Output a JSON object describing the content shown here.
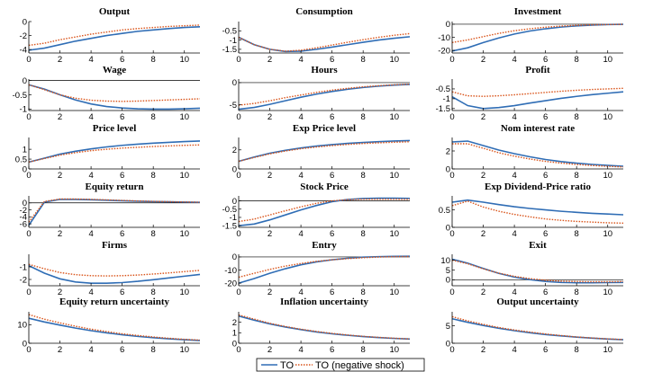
{
  "chart_data": {
    "type": "line",
    "legend": {
      "placement": "bottom-center",
      "entries": [
        "TO",
        "TO (negative shock)"
      ]
    },
    "colors": {
      "TO": "#2f6db5",
      "TO (negative shock)": "#d95319"
    },
    "x": [
      0,
      1,
      2,
      3,
      4,
      5,
      6,
      7,
      8,
      9,
      10,
      11
    ],
    "xlim": [
      0,
      11
    ],
    "xticks": [
      "0",
      "2",
      "4",
      "6",
      "8",
      "10"
    ],
    "panels": [
      {
        "title": "Output",
        "ylim": [
          -4.5,
          0
        ],
        "yticks": [
          {
            "v": 0,
            "t": "0"
          },
          {
            "v": -2,
            "t": "-2"
          },
          {
            "v": -4,
            "t": "-4"
          }
        ],
        "series": [
          {
            "name": "TO",
            "values": [
              -4.1,
              -3.8,
              -3.3,
              -2.8,
              -2.4,
              -2.0,
              -1.7,
              -1.4,
              -1.2,
              -1.0,
              -0.85,
              -0.75
            ]
          },
          {
            "name": "TO (negative shock)",
            "values": [
              -3.4,
              -3.1,
              -2.6,
              -2.2,
              -1.8,
              -1.5,
              -1.2,
              -1.0,
              -0.85,
              -0.7,
              -0.6,
              -0.5
            ]
          }
        ]
      },
      {
        "title": "Consumption",
        "ylim": [
          -1.7,
          0
        ],
        "yticks": [
          {
            "v": -0.5,
            "t": "-0.5"
          },
          {
            "v": -1,
            "t": "-1"
          },
          {
            "v": -1.5,
            "t": "-1.5"
          }
        ],
        "series": [
          {
            "name": "TO",
            "values": [
              -0.85,
              -1.25,
              -1.5,
              -1.62,
              -1.6,
              -1.5,
              -1.38,
              -1.25,
              -1.12,
              -1.0,
              -0.9,
              -0.82
            ]
          },
          {
            "name": "TO (negative shock)",
            "values": [
              -0.85,
              -1.25,
              -1.5,
              -1.6,
              -1.55,
              -1.42,
              -1.27,
              -1.12,
              -0.98,
              -0.85,
              -0.74,
              -0.65
            ]
          }
        ]
      },
      {
        "title": "Investment",
        "ylim": [
          -22,
          2
        ],
        "yticks": [
          {
            "v": 0,
            "t": "0"
          },
          {
            "v": -10,
            "t": "-10"
          },
          {
            "v": -20,
            "t": "-20"
          }
        ],
        "series": [
          {
            "name": "TO",
            "values": [
              -20.5,
              -18,
              -14,
              -10.5,
              -7.5,
              -5.2,
              -3.5,
              -2.2,
              -1.3,
              -0.7,
              -0.3,
              -0.1
            ]
          },
          {
            "name": "TO (negative shock)",
            "values": [
              -14,
              -12,
              -9.5,
              -7,
              -5,
              -3.5,
              -2.3,
              -1.5,
              -0.9,
              -0.5,
              -0.3,
              -0.1
            ]
          }
        ]
      },
      {
        "title": "Wage",
        "ylim": [
          -1.05,
          0.05
        ],
        "yticks": [
          {
            "v": 0,
            "t": "0"
          },
          {
            "v": -0.5,
            "t": "-0.5"
          },
          {
            "v": -1,
            "t": "-1"
          }
        ],
        "series": [
          {
            "name": "TO",
            "values": [
              -0.15,
              -0.3,
              -0.5,
              -0.68,
              -0.82,
              -0.91,
              -0.96,
              -0.99,
              -1.0,
              -1.0,
              -0.99,
              -0.97
            ]
          },
          {
            "name": "TO (negative shock)",
            "values": [
              -0.15,
              -0.32,
              -0.5,
              -0.62,
              -0.69,
              -0.72,
              -0.73,
              -0.72,
              -0.7,
              -0.68,
              -0.66,
              -0.64
            ]
          }
        ]
      },
      {
        "title": "Hours",
        "ylim": [
          -6.3,
          0.8
        ],
        "yticks": [
          {
            "v": 0,
            "t": "0"
          },
          {
            "v": -5,
            "t": "-5"
          }
        ],
        "series": [
          {
            "name": "TO",
            "values": [
              -6.0,
              -5.6,
              -4.9,
              -4.1,
              -3.3,
              -2.6,
              -2.0,
              -1.5,
              -1.1,
              -0.8,
              -0.55,
              -0.4
            ]
          },
          {
            "name": "TO (negative shock)",
            "values": [
              -5.1,
              -4.7,
              -4.1,
              -3.4,
              -2.8,
              -2.2,
              -1.7,
              -1.3,
              -0.95,
              -0.7,
              -0.5,
              -0.35
            ]
          }
        ]
      },
      {
        "title": "Profit",
        "ylim": [
          -1.6,
          0
        ],
        "yticks": [
          {
            "v": -0.5,
            "t": "-0.5"
          },
          {
            "v": -1,
            "t": "-1"
          },
          {
            "v": -1.5,
            "t": "-1.5"
          }
        ],
        "series": [
          {
            "name": "TO",
            "values": [
              -0.9,
              -1.35,
              -1.5,
              -1.45,
              -1.35,
              -1.22,
              -1.1,
              -0.98,
              -0.88,
              -0.79,
              -0.72,
              -0.65
            ]
          },
          {
            "name": "TO (negative shock)",
            "values": [
              -0.65,
              -0.85,
              -0.88,
              -0.85,
              -0.8,
              -0.74,
              -0.68,
              -0.62,
              -0.57,
              -0.53,
              -0.5,
              -0.47
            ]
          }
        ]
      },
      {
        "title": "Price level",
        "ylim": [
          0,
          1.6
        ],
        "yticks": [
          {
            "v": 1,
            "t": "1"
          },
          {
            "v": 0.5,
            "t": "0.5"
          },
          {
            "v": 0,
            "t": "0"
          }
        ],
        "series": [
          {
            "name": "TO",
            "values": [
              0.35,
              0.55,
              0.75,
              0.9,
              1.02,
              1.12,
              1.2,
              1.26,
              1.31,
              1.35,
              1.39,
              1.42
            ]
          },
          {
            "name": "TO (negative shock)",
            "values": [
              0.35,
              0.53,
              0.7,
              0.83,
              0.93,
              1.0,
              1.06,
              1.1,
              1.14,
              1.17,
              1.2,
              1.22
            ]
          }
        ]
      },
      {
        "title": "Exp Price level",
        "ylim": [
          0,
          3.3
        ],
        "yticks": [
          {
            "v": 2,
            "t": "2"
          },
          {
            "v": 0,
            "t": "0"
          }
        ],
        "series": [
          {
            "name": "TO",
            "values": [
              0.8,
              1.25,
              1.65,
              1.95,
              2.2,
              2.4,
              2.55,
              2.68,
              2.78,
              2.86,
              2.93,
              2.98
            ]
          },
          {
            "name": "TO (negative shock)",
            "values": [
              0.8,
              1.2,
              1.58,
              1.88,
              2.12,
              2.3,
              2.45,
              2.57,
              2.67,
              2.74,
              2.8,
              2.85
            ]
          }
        ]
      },
      {
        "title": "Nom interest rate",
        "ylim": [
          0,
          3.5
        ],
        "yticks": [
          {
            "v": 2,
            "t": "2"
          },
          {
            "v": 0,
            "t": "0"
          }
        ],
        "series": [
          {
            "name": "TO",
            "values": [
              3.0,
              3.1,
              2.6,
              2.1,
              1.7,
              1.35,
              1.05,
              0.82,
              0.64,
              0.5,
              0.39,
              0.3
            ]
          },
          {
            "name": "TO (negative shock)",
            "values": [
              2.8,
              2.8,
              2.3,
              1.8,
              1.42,
              1.1,
              0.84,
              0.65,
              0.5,
              0.38,
              0.29,
              0.22
            ]
          }
        ]
      },
      {
        "title": "Equity return",
        "ylim": [
          -7,
          2
        ],
        "yticks": [
          {
            "v": 0,
            "t": "0"
          },
          {
            "v": -2,
            "t": "-2"
          },
          {
            "v": -4,
            "t": "-4"
          },
          {
            "v": -6,
            "t": "-6"
          }
        ],
        "series": [
          {
            "name": "TO",
            "values": [
              -6.4,
              0.2,
              1.0,
              1.0,
              0.9,
              0.75,
              0.6,
              0.48,
              0.38,
              0.3,
              0.22,
              0.16
            ]
          },
          {
            "name": "TO (negative shock)",
            "values": [
              -5.5,
              0.4,
              1.1,
              1.1,
              1.0,
              0.85,
              0.7,
              0.55,
              0.43,
              0.33,
              0.25,
              0.18
            ]
          }
        ]
      },
      {
        "title": "Stock Price",
        "ylim": [
          -1.6,
          0.3
        ],
        "yticks": [
          {
            "v": 0,
            "t": "0"
          },
          {
            "v": -0.5,
            "t": "-0.5"
          },
          {
            "v": -1,
            "t": "-1"
          },
          {
            "v": -1.5,
            "t": "-1.5"
          }
        ],
        "series": [
          {
            "name": "TO",
            "values": [
              -1.5,
              -1.4,
              -1.15,
              -0.85,
              -0.55,
              -0.28,
              -0.05,
              0.08,
              0.14,
              0.16,
              0.16,
              0.15
            ]
          },
          {
            "name": "TO (negative shock)",
            "values": [
              -1.25,
              -1.1,
              -0.85,
              -0.6,
              -0.36,
              -0.15,
              0.0,
              0.07,
              0.1,
              0.1,
              0.1,
              0.09
            ]
          }
        ]
      },
      {
        "title": "Exp Dividend-Price ratio",
        "ylim": [
          0,
          0.9
        ],
        "yticks": [
          {
            "v": 0.5,
            "t": "0.5"
          },
          {
            "v": 0,
            "t": "0"
          }
        ],
        "series": [
          {
            "name": "TO",
            "values": [
              0.72,
              0.78,
              0.72,
              0.65,
              0.59,
              0.54,
              0.5,
              0.46,
              0.43,
              0.4,
              0.38,
              0.36
            ]
          },
          {
            "name": "TO (negative shock)",
            "values": [
              0.62,
              0.75,
              0.58,
              0.46,
              0.37,
              0.3,
              0.24,
              0.2,
              0.17,
              0.15,
              0.13,
              0.12
            ]
          }
        ]
      },
      {
        "title": "Firms",
        "ylim": [
          -2.5,
          0
        ],
        "yticks": [
          {
            "v": -1,
            "t": "-1"
          },
          {
            "v": -2,
            "t": "-2"
          }
        ],
        "series": [
          {
            "name": "TO",
            "values": [
              -0.9,
              -1.5,
              -1.95,
              -2.2,
              -2.3,
              -2.3,
              -2.25,
              -2.15,
              -2.02,
              -1.88,
              -1.74,
              -1.6
            ]
          },
          {
            "name": "TO (negative shock)",
            "values": [
              -0.8,
              -1.15,
              -1.45,
              -1.62,
              -1.7,
              -1.72,
              -1.7,
              -1.65,
              -1.57,
              -1.48,
              -1.38,
              -1.28
            ]
          }
        ]
      },
      {
        "title": "Entry",
        "ylim": [
          -22,
          2
        ],
        "yticks": [
          {
            "v": 0,
            "t": "0"
          },
          {
            "v": -10,
            "t": "-10"
          },
          {
            "v": -20,
            "t": "-20"
          }
        ],
        "series": [
          {
            "name": "TO",
            "values": [
              -20,
              -16.5,
              -12.5,
              -9,
              -6,
              -3.8,
              -2.2,
              -1.0,
              -0.2,
              0.2,
              0.4,
              0.5
            ]
          },
          {
            "name": "TO (negative shock)",
            "values": [
              -15.5,
              -12.5,
              -9.5,
              -7,
              -5,
              -3.4,
              -2.2,
              -1.3,
              -0.6,
              -0.1,
              0.2,
              0.3
            ]
          }
        ]
      },
      {
        "title": "Exit",
        "ylim": [
          -3,
          13
        ],
        "yticks": [
          {
            "v": 10,
            "t": "10"
          },
          {
            "v": 5,
            "t": "5"
          },
          {
            "v": 0,
            "t": "0"
          }
        ],
        "series": [
          {
            "name": "TO",
            "values": [
              10.5,
              8.5,
              5.8,
              3.3,
              1.4,
              0.1,
              -0.8,
              -1.3,
              -1.5,
              -1.5,
              -1.4,
              -1.3
            ]
          },
          {
            "name": "TO (negative shock)",
            "values": [
              10.0,
              8.2,
              5.6,
              3.4,
              1.8,
              0.6,
              -0.2,
              -0.7,
              -0.9,
              -1.0,
              -1.0,
              -0.9
            ]
          }
        ]
      },
      {
        "title": "Equity return uncertainty",
        "ylim": [
          0,
          17
        ],
        "yticks": [
          {
            "v": 10,
            "t": "10"
          },
          {
            "v": 0,
            "t": "0"
          }
        ],
        "series": [
          {
            "name": "TO",
            "values": [
              13.5,
              11.5,
              9.8,
              8.2,
              6.8,
              5.6,
              4.6,
              3.7,
              3.0,
              2.4,
              1.9,
              1.5
            ]
          },
          {
            "name": "TO (negative shock)",
            "values": [
              15.5,
              13.0,
              11.0,
              9.2,
              7.6,
              6.3,
              5.1,
              4.2,
              3.4,
              2.7,
              2.1,
              1.7
            ]
          }
        ]
      },
      {
        "title": "Inflation uncertainty",
        "ylim": [
          0,
          3
        ],
        "yticks": [
          {
            "v": 2,
            "t": "2"
          },
          {
            "v": 1,
            "t": "1"
          },
          {
            "v": 0,
            "t": "0"
          }
        ],
        "series": [
          {
            "name": "TO",
            "values": [
              2.6,
              2.2,
              1.85,
              1.55,
              1.3,
              1.08,
              0.9,
              0.76,
              0.64,
              0.54,
              0.46,
              0.4
            ]
          },
          {
            "name": "TO (negative shock)",
            "values": [
              2.7,
              2.3,
              1.9,
              1.6,
              1.34,
              1.12,
              0.94,
              0.79,
              0.66,
              0.56,
              0.48,
              0.41
            ]
          }
        ]
      },
      {
        "title": "Output uncertainty",
        "ylim": [
          0,
          9
        ],
        "yticks": [
          {
            "v": 5,
            "t": "5"
          },
          {
            "v": 0,
            "t": "0"
          }
        ],
        "series": [
          {
            "name": "TO",
            "values": [
              7.0,
              6.0,
              5.1,
              4.3,
              3.6,
              3.0,
              2.5,
              2.1,
              1.75,
              1.45,
              1.2,
              1.0
            ]
          },
          {
            "name": "TO (negative shock)",
            "values": [
              7.6,
              6.4,
              5.4,
              4.5,
              3.8,
              3.2,
              2.65,
              2.2,
              1.8,
              1.5,
              1.25,
              1.05
            ]
          }
        ]
      }
    ]
  }
}
